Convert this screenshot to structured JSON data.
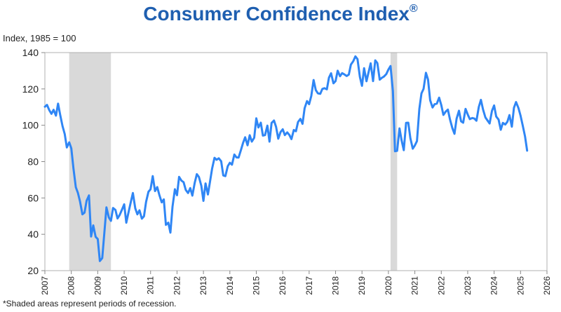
{
  "header": {
    "title": "Consumer Confidence Index",
    "title_mark": "®"
  },
  "axis": {
    "ylabel": "Index, 1985 = 100"
  },
  "footnote": "*Shaded areas represent periods of recession.",
  "colors": {
    "line": "#2f86f5",
    "title": "#1f5fb0",
    "recession": "#d9d9d9",
    "frame": "#b0b0b0"
  },
  "chart_data": {
    "type": "line",
    "title": "Consumer Confidence Index®",
    "xlabel": "",
    "ylabel": "Index, 1985 = 100",
    "ylim": [
      20,
      140
    ],
    "xlim": [
      2007,
      2026
    ],
    "yticks": [
      20,
      40,
      60,
      80,
      100,
      120,
      140
    ],
    "xticks": [
      "2007",
      "2008",
      "2009",
      "2010",
      "2011",
      "2012",
      "2013",
      "2014",
      "2015",
      "2016",
      "2017",
      "2018",
      "2019",
      "2020",
      "2021",
      "2022",
      "2023",
      "2024",
      "2025",
      "2026"
    ],
    "grid": false,
    "recessions": [
      [
        2007.92,
        2009.5
      ],
      [
        2020.08,
        2020.33
      ]
    ],
    "series": [
      {
        "x": [
          2007.0,
          2007.08,
          2007.17,
          2007.25,
          2007.33,
          2007.42,
          2007.5,
          2007.58,
          2007.67,
          2007.75,
          2007.83,
          2007.92,
          2008.0,
          2008.08,
          2008.17,
          2008.25,
          2008.33,
          2008.42,
          2008.5,
          2008.58,
          2008.67,
          2008.75,
          2008.83,
          2008.92,
          2009.0,
          2009.08,
          2009.17,
          2009.25,
          2009.33,
          2009.42,
          2009.5,
          2009.58,
          2009.67,
          2009.75,
          2009.83,
          2009.92,
          2010.0,
          2010.08,
          2010.17,
          2010.25,
          2010.33,
          2010.42,
          2010.5,
          2010.58,
          2010.67,
          2010.75,
          2010.83,
          2010.92,
          2011.0,
          2011.08,
          2011.17,
          2011.25,
          2011.33,
          2011.42,
          2011.5,
          2011.58,
          2011.67,
          2011.75,
          2011.83,
          2011.92,
          2012.0,
          2012.08,
          2012.17,
          2012.25,
          2012.33,
          2012.42,
          2012.5,
          2012.58,
          2012.67,
          2012.75,
          2012.83,
          2012.92,
          2013.0,
          2013.08,
          2013.17,
          2013.25,
          2013.33,
          2013.42,
          2013.5,
          2013.58,
          2013.67,
          2013.75,
          2013.83,
          2013.92,
          2014.0,
          2014.08,
          2014.17,
          2014.25,
          2014.33,
          2014.42,
          2014.5,
          2014.58,
          2014.67,
          2014.75,
          2014.83,
          2014.92,
          2015.0,
          2015.08,
          2015.17,
          2015.25,
          2015.33,
          2015.42,
          2015.5,
          2015.58,
          2015.67,
          2015.75,
          2015.83,
          2015.92,
          2016.0,
          2016.08,
          2016.17,
          2016.25,
          2016.33,
          2016.42,
          2016.5,
          2016.58,
          2016.67,
          2016.75,
          2016.83,
          2016.92,
          2017.0,
          2017.08,
          2017.17,
          2017.25,
          2017.33,
          2017.42,
          2017.5,
          2017.58,
          2017.67,
          2017.75,
          2017.83,
          2017.92,
          2018.0,
          2018.08,
          2018.17,
          2018.25,
          2018.33,
          2018.42,
          2018.5,
          2018.58,
          2018.67,
          2018.75,
          2018.83,
          2018.92,
          2019.0,
          2019.08,
          2019.17,
          2019.25,
          2019.33,
          2019.42,
          2019.5,
          2019.58,
          2019.67,
          2019.75,
          2019.83,
          2019.92,
          2020.0,
          2020.08,
          2020.17,
          2020.25,
          2020.33,
          2020.42,
          2020.5,
          2020.58,
          2020.67,
          2020.75,
          2020.83,
          2020.92,
          2021.0,
          2021.08,
          2021.17,
          2021.25,
          2021.33,
          2021.42,
          2021.5,
          2021.58,
          2021.67,
          2021.75,
          2021.83,
          2021.92,
          2022.0,
          2022.08,
          2022.17,
          2022.25,
          2022.33,
          2022.42,
          2022.5,
          2022.58,
          2022.67,
          2022.75,
          2022.83,
          2022.92,
          2023.0,
          2023.08,
          2023.17,
          2023.25,
          2023.33,
          2023.42,
          2023.5,
          2023.58,
          2023.67,
          2023.75,
          2023.83,
          2023.92,
          2024.0,
          2024.08,
          2024.17,
          2024.25,
          2024.33,
          2024.42,
          2024.5,
          2024.58,
          2024.67,
          2024.75,
          2024.83,
          2024.92,
          2025.0,
          2025.08,
          2025.17,
          2025.25
        ],
        "values": [
          110.2,
          111.2,
          108.2,
          106.3,
          108.5,
          105.3,
          111.9,
          105.6,
          99.5,
          95.2,
          87.8,
          90.6,
          87.3,
          76.4,
          65.9,
          62.8,
          58.1,
          51.0,
          51.9,
          58.5,
          61.4,
          38.8,
          44.9,
          38.6,
          37.4,
          25.3,
          26.9,
          40.8,
          54.8,
          49.3,
          47.4,
          54.5,
          53.4,
          48.7,
          50.6,
          53.6,
          56.5,
          46.4,
          52.5,
          57.7,
          62.7,
          54.3,
          51.0,
          53.2,
          48.6,
          49.9,
          57.8,
          63.4,
          64.8,
          72.0,
          63.8,
          66.0,
          61.7,
          57.6,
          59.2,
          45.2,
          46.4,
          40.9,
          55.2,
          64.8,
          61.5,
          71.6,
          69.5,
          68.7,
          64.4,
          62.7,
          65.4,
          61.3,
          68.4,
          73.1,
          71.5,
          66.7,
          58.4,
          68.0,
          61.9,
          69.0,
          76.2,
          82.1,
          81.0,
          81.8,
          80.2,
          72.4,
          72.0,
          77.5,
          79.4,
          78.3,
          83.9,
          82.3,
          82.2,
          86.4,
          90.3,
          93.4,
          89.0,
          94.5,
          91.0,
          93.1,
          103.8,
          98.8,
          101.4,
          94.3,
          94.6,
          99.8,
          91.0,
          101.3,
          102.6,
          99.1,
          92.6,
          96.3,
          97.8,
          94.6,
          96.1,
          94.7,
          92.4,
          97.4,
          96.7,
          101.8,
          103.5,
          100.8,
          109.4,
          113.3,
          111.6,
          116.1,
          124.9,
          119.4,
          117.6,
          117.3,
          120.0,
          120.4,
          119.8,
          126.2,
          128.6,
          123.1,
          124.3,
          130.0,
          127.0,
          128.7,
          128.0,
          127.1,
          127.9,
          133.4,
          135.3,
          137.9,
          136.4,
          126.6,
          121.7,
          131.4,
          124.2,
          129.2,
          134.1,
          124.3,
          135.7,
          134.2,
          125.1,
          126.1,
          126.8,
          128.2,
          130.7,
          132.6,
          118.8,
          85.7,
          85.9,
          98.3,
          91.7,
          86.3,
          101.3,
          101.4,
          92.9,
          87.1,
          88.9,
          91.3,
          109.0,
          117.5,
          120.0,
          128.9,
          125.1,
          113.8,
          109.8,
          111.6,
          111.9,
          115.2,
          111.1,
          105.7,
          107.6,
          108.6,
          103.2,
          98.4,
          95.3,
          103.6,
          108.0,
          102.2,
          101.4,
          109.0,
          106.0,
          103.4,
          104.0,
          103.7,
          102.5,
          110.1,
          114.0,
          108.7,
          104.3,
          102.6,
          101.0,
          108.0,
          110.9,
          104.8,
          103.1,
          97.5,
          101.3,
          100.4,
          101.9,
          105.6,
          99.2,
          109.6,
          112.8,
          109.5,
          105.3,
          100.1,
          93.9,
          86.0
        ]
      }
    ]
  }
}
